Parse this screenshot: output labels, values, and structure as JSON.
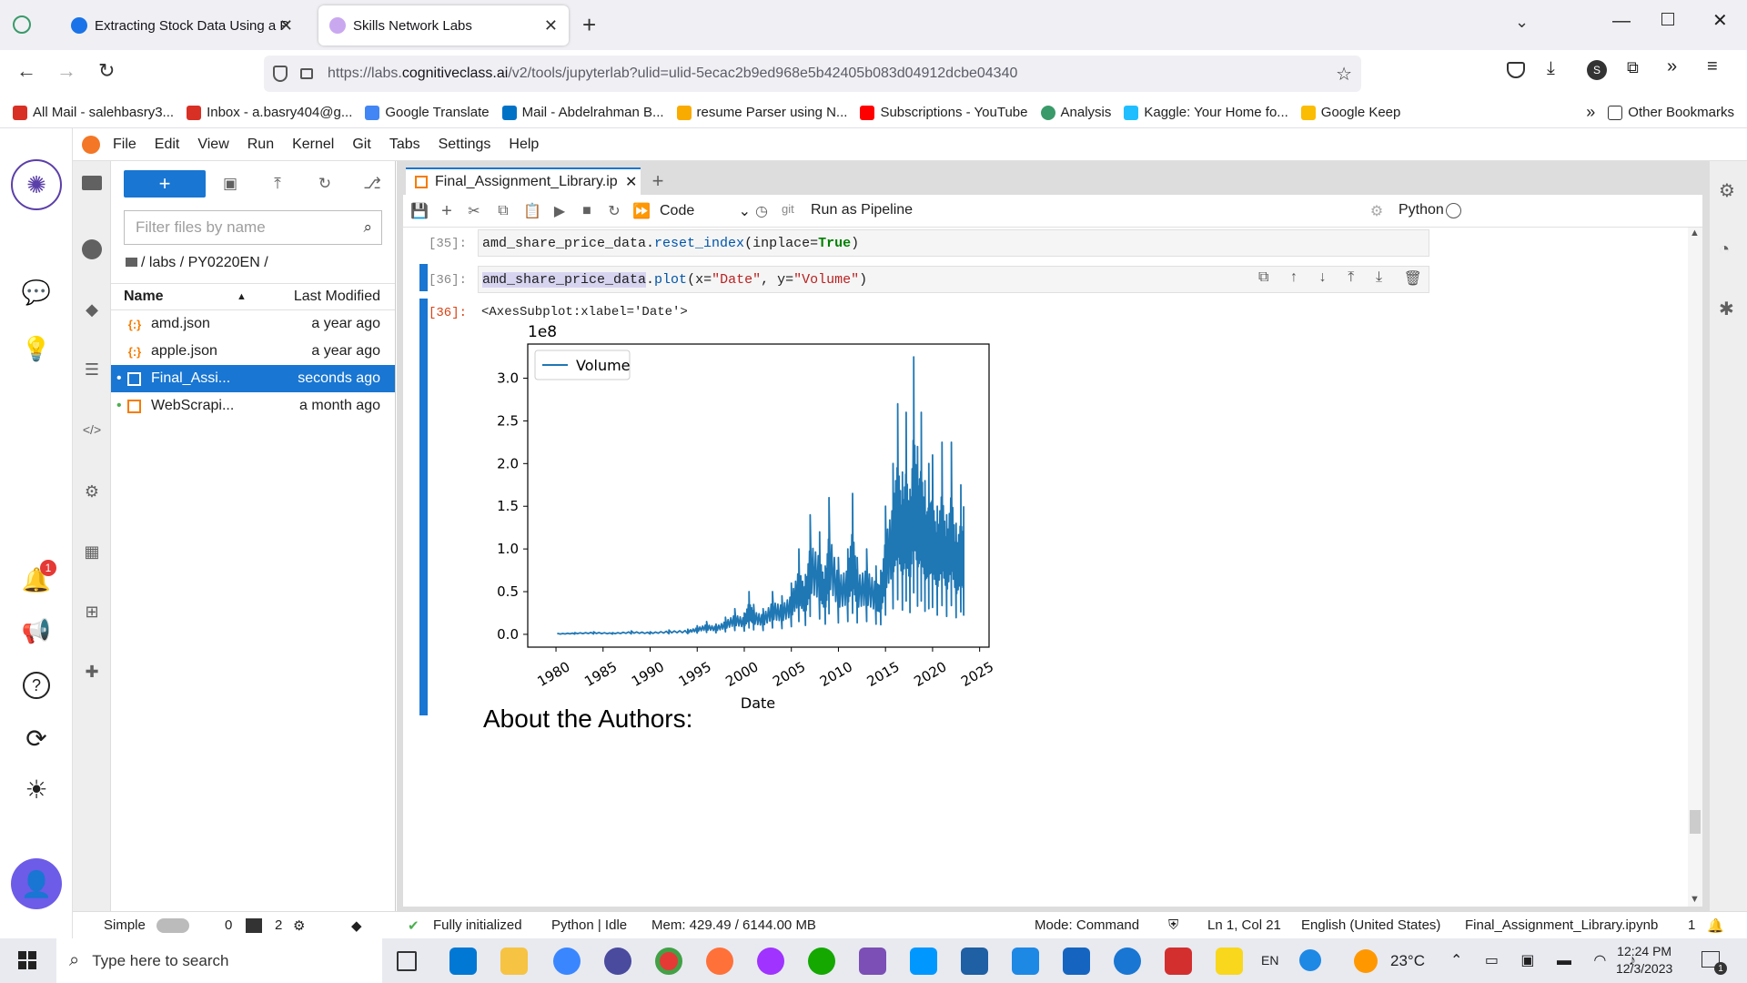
{
  "browser": {
    "tabs": [
      {
        "title": "Extracting Stock Data Using a P"
      },
      {
        "title": "Skills Network Labs"
      }
    ],
    "url_prefix": "https://labs.",
    "url_domain": "cognitiveclass.ai",
    "url_rest": "/v2/tools/jupyterlab?ulid=ulid-5ecac2b9ed968e5b42405b083d04912dcbe04340",
    "bookmarks": [
      {
        "label": "All Mail - salehbasry3...",
        "color": "#d93025"
      },
      {
        "label": "Inbox - a.basry404@g...",
        "color": "#d93025"
      },
      {
        "label": "Google Translate",
        "color": "#4285f4"
      },
      {
        "label": "Mail - Abdelrahman B...",
        "color": "#0072c6"
      },
      {
        "label": "resume Parser using N...",
        "color": "#f9ab00"
      },
      {
        "label": "Subscriptions - YouTube",
        "color": "#ff0000"
      },
      {
        "label": "Analysis",
        "color": "#3a9a6a"
      },
      {
        "label": "Kaggle: Your Home fo...",
        "color": "#20beff"
      },
      {
        "label": "Google Keep",
        "color": "#fbbc04"
      }
    ],
    "other_bookmarks": "Other Bookmarks"
  },
  "menu": [
    "File",
    "Edit",
    "View",
    "Run",
    "Kernel",
    "Git",
    "Tabs",
    "Settings",
    "Help"
  ],
  "filebrowser": {
    "filter_placeholder": "Filter files by name",
    "breadcrumb": "/ labs / PY0220EN /",
    "col_name": "Name",
    "col_modified": "Last Modified",
    "files": [
      {
        "name": "amd.json",
        "modified": "a year ago",
        "icon": "{:}"
      },
      {
        "name": "apple.json",
        "modified": "a year ago",
        "icon": "{:}"
      },
      {
        "name": "Final_Assi...",
        "modified": "seconds ago",
        "icon": "nb"
      },
      {
        "name": "WebScrapi...",
        "modified": "a month ago",
        "icon": "nb"
      }
    ],
    "notification_count": "1"
  },
  "notebook": {
    "tab_title": "Final_Assignment_Library.ip",
    "cell_type": "Code",
    "run_pipeline": "Run as Pipeline",
    "git": "git",
    "kernel": "Python",
    "cells": [
      {
        "prompt": "[35]:",
        "code_obj": "amd_share_price_data",
        "code_dot": ".",
        "code_fn": "reset_index",
        "code_arg": "(inplace=",
        "code_kw": "True",
        "code_end": ")"
      },
      {
        "prompt": "[36]:",
        "code_obj": "amd_share_price_data",
        "code_dot": ".",
        "code_fn": "plot",
        "code_open": "(x=",
        "code_s1": "\"Date\"",
        "code_mid": ", y=",
        "code_s2": "\"Volume\"",
        "code_end": ")"
      }
    ],
    "output_prompt": "[36]:",
    "output_text": "<AxesSubplot:xlabel='Date'>",
    "heading": "About the Authors:"
  },
  "chart_data": {
    "type": "line",
    "xlabel": "Date",
    "ylabel": "",
    "scale_label": "1e8",
    "legend": [
      "Volume"
    ],
    "legend_position": "upper left",
    "color": "#1f77b4",
    "xlim": [
      1977,
      2026
    ],
    "ylim": [
      -0.15,
      3.4
    ],
    "xticks": [
      "1980",
      "1985",
      "1990",
      "1995",
      "2000",
      "2005",
      "2010",
      "2015",
      "2020",
      "2025"
    ],
    "yticks": [
      "0.0",
      "0.5",
      "1.0",
      "1.5",
      "2.0",
      "2.5",
      "3.0"
    ],
    "series": [
      {
        "name": "Volume",
        "x": [
          1980.2,
          1982,
          1984,
          1986,
          1988,
          1990,
          1992,
          1994,
          1995,
          1996,
          1997,
          1998,
          1999,
          2000,
          2000.5,
          2001,
          2002,
          2003,
          2004,
          2005,
          2005.8,
          2006.5,
          2007,
          2008,
          2008.6,
          2009,
          2010,
          2011,
          2011.5,
          2012,
          2013,
          2014,
          2014.5,
          2015,
          2015.8,
          2016.3,
          2016.8,
          2017.2,
          2017.6,
          2018,
          2018.4,
          2018.8,
          2019.2,
          2019.6,
          2020,
          2020.5,
          2021,
          2021.5,
          2022,
          2022.5,
          2023,
          2023.3
        ],
        "y": [
          0.01,
          0.02,
          0.03,
          0.02,
          0.04,
          0.03,
          0.05,
          0.06,
          0.1,
          0.15,
          0.12,
          0.2,
          0.3,
          0.25,
          0.5,
          0.35,
          0.3,
          0.5,
          0.45,
          0.6,
          1.0,
          0.7,
          1.4,
          1.2,
          0.8,
          1.6,
          0.9,
          1.0,
          1.65,
          0.9,
          1.0,
          0.8,
          0.75,
          1.5,
          2.0,
          2.7,
          1.9,
          2.6,
          1.7,
          3.25,
          2.2,
          2.6,
          1.8,
          2.0,
          2.1,
          1.5,
          2.25,
          1.4,
          2.25,
          1.3,
          1.75,
          1.5
        ]
      }
    ]
  },
  "status": {
    "mode_label": "Simple",
    "count_a": "0",
    "count_b": "2",
    "init": "Fully initialized",
    "kernel_state": "Python | Idle",
    "mem": "Mem: 429.49 / 6144.00 MB",
    "mode": "Mode: Command",
    "position": "Ln 1, Col 21",
    "language": "English (United States)",
    "filename": "Final_Assignment_Library.ipynb",
    "notif": "1"
  },
  "taskbar": {
    "search_placeholder": "Type here to search",
    "lang": "EN",
    "temp": "23°C",
    "time": "12:24 PM",
    "date": "12/3/2023",
    "notif_count": "1"
  }
}
